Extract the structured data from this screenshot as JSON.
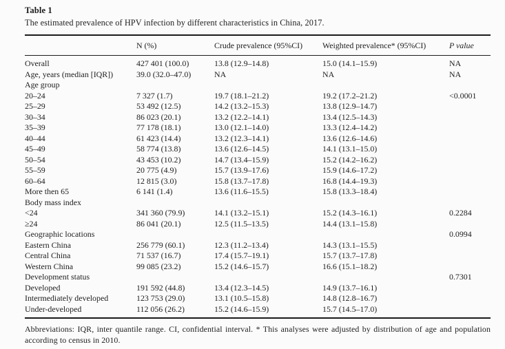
{
  "table": {
    "label": "Table 1",
    "caption": "The estimated prevalence of HPV infection by different characteristics in China, 2017.",
    "columns": [
      "",
      "N (%)",
      "Crude prevalence (95%CI)",
      "Weighted prevalence* (95%CI)",
      "P value"
    ],
    "rows": [
      [
        "Overall",
        "427 401 (100.0)",
        "13.8 (12.9–14.8)",
        "15.0 (14.1–15.9)",
        "NA"
      ],
      [
        "Age, years (median [IQR])",
        "39.0 (32.0–47.0)",
        "NA",
        "NA",
        "NA"
      ],
      [
        "Age group",
        "",
        "",
        "",
        ""
      ],
      [
        "20–24",
        "7 327 (1.7)",
        "19.7 (18.1–21.2)",
        "19.2 (17.2–21.2)",
        "<0.0001"
      ],
      [
        "25–29",
        "53 492 (12.5)",
        "14.2 (13.2–15.3)",
        "13.8 (12.9–14.7)",
        ""
      ],
      [
        "30–34",
        "86 023 (20.1)",
        "13.2 (12.2–14.1)",
        "13.4 (12.5–14.3)",
        ""
      ],
      [
        "35–39",
        "77 178 (18.1)",
        "13.0 (12.1–14.0)",
        "13.3 (12.4–14.2)",
        ""
      ],
      [
        "40–44",
        "61 423 (14.4)",
        "13.2 (12.3–14.1)",
        "13.6 (12.6–14.6)",
        ""
      ],
      [
        "45–49",
        "58 774 (13.8)",
        "13.6 (12.6–14.5)",
        "14.1 (13.1–15.0)",
        ""
      ],
      [
        "50–54",
        "43 453 (10.2)",
        "14.7 (13.4–15.9)",
        "15.2 (14.2–16.2)",
        ""
      ],
      [
        "55–59",
        "20 775 (4.9)",
        "15.7 (13.9–17.6)",
        "15.9 (14.6–17.2)",
        ""
      ],
      [
        "60–64",
        "12 815 (3.0)",
        "15.8 (13.7–17.8)",
        "16.8 (14.4–19.3)",
        ""
      ],
      [
        "More then 65",
        "6 141 (1.4)",
        "13.6 (11.6–15.5)",
        "15.8 (13.3–18.4)",
        ""
      ],
      [
        "Body mass index",
        "",
        "",
        "",
        ""
      ],
      [
        "<24",
        "341 360 (79.9)",
        "14.1 (13.2–15.1)",
        "15.2 (14.3–16.1)",
        "0.2284"
      ],
      [
        "≥24",
        "86 041 (20.1)",
        "12.5 (11.5–13.5)",
        "14.4 (13.1–15.8)",
        ""
      ],
      [
        "Geographic locations",
        "",
        "",
        "",
        "0.0994"
      ],
      [
        "Eastern China",
        "256 779 (60.1)",
        "12.3 (11.2–13.4)",
        "14.3 (13.1–15.5)",
        ""
      ],
      [
        "Central China",
        "71 537 (16.7)",
        "17.4 (15.7–19.1)",
        "15.7 (13.7–17.8)",
        ""
      ],
      [
        "Western China",
        "99 085 (23.2)",
        "15.2 (14.6–15.7)",
        "16.6 (15.1–18.2)",
        ""
      ],
      [
        "Development status",
        "",
        "",
        "",
        "0.7301"
      ],
      [
        "Developed",
        "191 592 (44.8)",
        "13.4 (12.3–14.5)",
        "14.9 (13.7–16.1)",
        ""
      ],
      [
        "Intermediately developed",
        "123 753 (29.0)",
        "13.1 (10.5–15.8)",
        "14.8 (12.8–16.7)",
        ""
      ],
      [
        "Under-developed",
        "112 056 (26.2)",
        "15.2 (14.6–15.9)",
        "15.7 (14.5–17.0)",
        ""
      ]
    ],
    "footnote": "Abbreviations: IQR, inter quantile range. CI, confidential interval. * This analyses were adjusted by distribution of age and population according to census in 2010."
  }
}
